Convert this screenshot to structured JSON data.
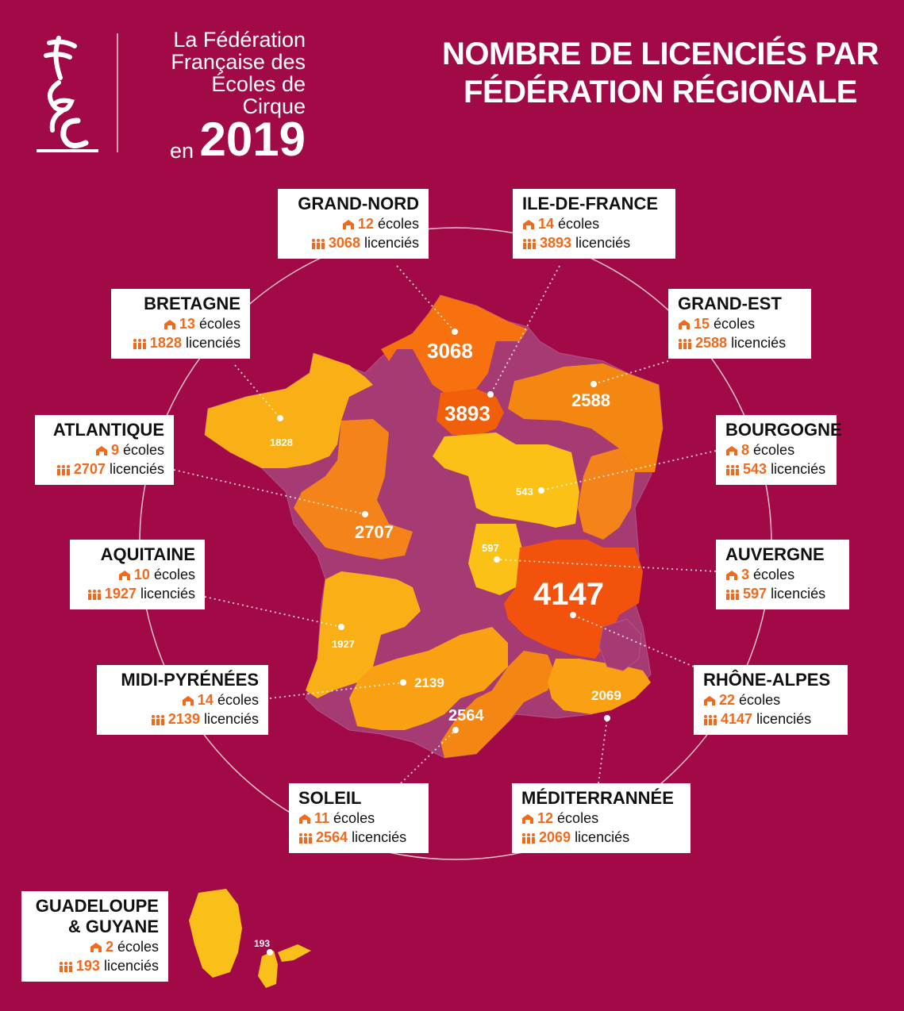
{
  "header": {
    "org_line1": "La Fédération",
    "org_line2": "Française des",
    "org_line3": "Écoles de Cirque",
    "org_en": "en",
    "year": "2019",
    "title_line1": "NOMBRE DE LICENCIÉS PAR",
    "title_line2": "FÉDÉRATION RÉGIONALE"
  },
  "colors": {
    "background": "#a10a46",
    "region_base": "#a63a73",
    "accent": "#f06a1e"
  },
  "legend_units": {
    "schools": "écoles",
    "members": "licenciés"
  },
  "regions": [
    {
      "name": "GRAND-NORD",
      "schools": "12",
      "licences": "3068",
      "map_label": "3068"
    },
    {
      "name": "ILE-DE-FRANCE",
      "schools": "14",
      "licences": "3893",
      "map_label": "3893"
    },
    {
      "name": "BRETAGNE",
      "schools": "13",
      "licences": "1828",
      "map_label": "1828"
    },
    {
      "name": "GRAND-EST",
      "schools": "15",
      "licences": "2588",
      "map_label": "2588"
    },
    {
      "name": "ATLANTIQUE",
      "schools": "9",
      "licences": "2707",
      "map_label": "2707"
    },
    {
      "name": "BOURGOGNE",
      "schools": "8",
      "licences": "543",
      "map_label": "543"
    },
    {
      "name": "AQUITAINE",
      "schools": "10",
      "licences": "1927",
      "map_label": "1927"
    },
    {
      "name": "AUVERGNE",
      "schools": "3",
      "licences": "597",
      "map_label": "597"
    },
    {
      "name": "MIDI-PYRÉNÉES",
      "schools": "14",
      "licences": "2139",
      "map_label": "2139"
    },
    {
      "name": "RHÔNE-ALPES",
      "schools": "22",
      "licences": "4147",
      "map_label": "4147"
    },
    {
      "name": "SOLEIL",
      "schools": "11",
      "licences": "2564",
      "map_label": "2564"
    },
    {
      "name": "MÉDITERRANNÉE",
      "schools": "12",
      "licences": "2069",
      "map_label": "2069"
    },
    {
      "name": "GUADELOUPE",
      "name2": "& GUYANE",
      "schools": "2",
      "licences": "193",
      "map_label": "193"
    }
  ]
}
